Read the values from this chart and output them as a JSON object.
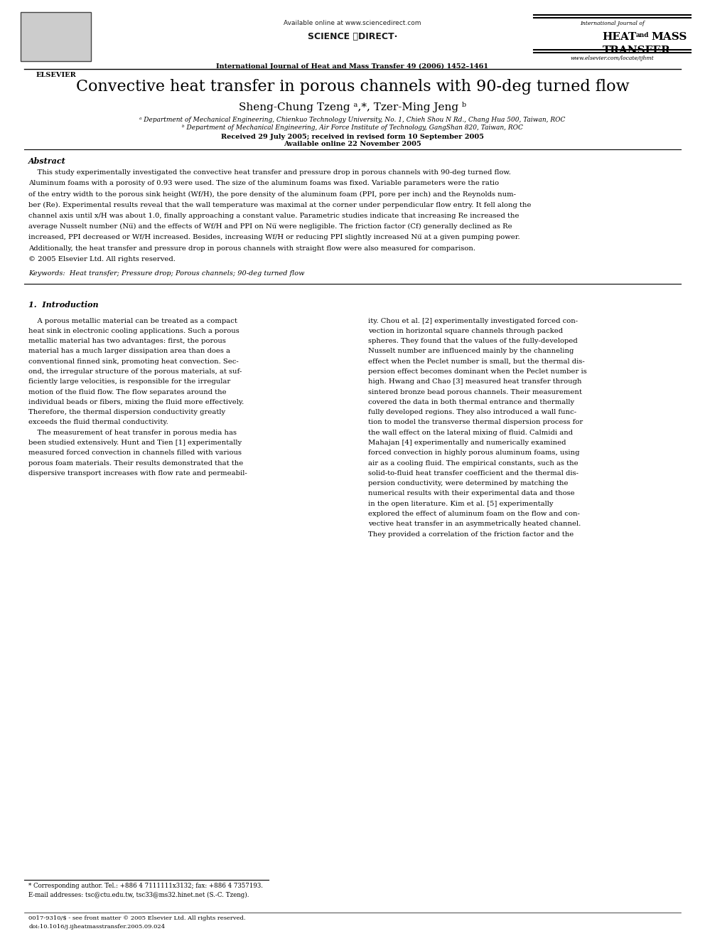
{
  "page_width": 9.92,
  "page_height": 13.23,
  "bg_color": "#ffffff",
  "header": {
    "available_online": "Available online at www.sciencedirect.com",
    "journal_full": "International Journal of Heat and Mass Transfer 49 (2006) 1452–1461",
    "website": "www.elsevier.com/locate/ijhmt"
  },
  "title": "Convective heat transfer in porous channels with 90-deg turned flow",
  "authors": "Sheng-Chung Tzeng ᵃ,*, Tzer-Ming Jeng ᵇ",
  "affiliation_a": "ᵃ Department of Mechanical Engineering, Chienkuo Technology University, No. 1, Chieh Shou N Rd., Chang Hua 500, Taiwan, ROC",
  "affiliation_b": "ᵇ Department of Mechanical Engineering, Air Force Institute of Technology, GangShan 820, Taiwan, ROC",
  "received": "Received 29 July 2005; received in revised form 10 September 2005",
  "available_online_date": "Available online 22 November 2005",
  "abstract_title": "Abstract",
  "keywords": "Keywords:  Heat transfer; Pressure drop; Porous channels; 90-deg turned flow",
  "section1_title": "1.  Introduction",
  "footnote_star": "* Corresponding author. Tel.: +886 4 7111111x3132; fax: +886 4 7357193.",
  "footnote_email": "E-mail addresses: tsc@ctu.edu.tw, tsc33@ms32.hinet.net (S.-C. Tzeng).",
  "footer_line1": "0017-9310/$ - see front matter © 2005 Elsevier Ltd. All rights reserved.",
  "footer_line2": "doi:10.1016/j.ijheatmasstransfer.2005.09.024",
  "abstract_lines": [
    "    This study experimentally investigated the convective heat transfer and pressure drop in porous channels with 90-deg turned flow.",
    "Aluminum foams with a porosity of 0.93 were used. The size of the aluminum foams was fixed. Variable parameters were the ratio",
    "of the entry width to the porous sink height (Wf/H), the pore density of the aluminum foam (PPI, pore per inch) and the Reynolds num-",
    "ber (Re). Experimental results reveal that the wall temperature was maximal at the corner under perpendicular flow entry. It fell along the",
    "channel axis until x/H was about 1.0, finally approaching a constant value. Parametric studies indicate that increasing Re increased the",
    "average Nusselt number (Nu̅) and the effects of Wf/H and PPI on Nu̅ were negligible. The friction factor (Cf) generally declined as Re",
    "increased, PPI decreased or Wf/H increased. Besides, increasing Wf/H or reducing PPI slightly increased Nu̅ at a given pumping power.",
    "Additionally, the heat transfer and pressure drop in porous channels with straight flow were also measured for comparison.",
    "© 2005 Elsevier Ltd. All rights reserved."
  ],
  "col1_lines": [
    "    A porous metallic material can be treated as a compact",
    "heat sink in electronic cooling applications. Such a porous",
    "metallic material has two advantages: first, the porous",
    "material has a much larger dissipation area than does a",
    "conventional finned sink, promoting heat convection. Sec-",
    "ond, the irregular structure of the porous materials, at suf-",
    "ficiently large velocities, is responsible for the irregular",
    "motion of the fluid flow. The flow separates around the",
    "individual beads or fibers, mixing the fluid more effectively.",
    "Therefore, the thermal dispersion conductivity greatly",
    "exceeds the fluid thermal conductivity.",
    "    The measurement of heat transfer in porous media has",
    "been studied extensively. Hunt and Tien [1] experimentally",
    "measured forced convection in channels filled with various",
    "porous foam materials. Their results demonstrated that the",
    "dispersive transport increases with flow rate and permeabil-"
  ],
  "col2_lines": [
    "ity. Chou et al. [2] experimentally investigated forced con-",
    "vection in horizontal square channels through packed",
    "spheres. They found that the values of the fully-developed",
    "Nusselt number are influenced mainly by the channeling",
    "effect when the Peclet number is small, but the thermal dis-",
    "persion effect becomes dominant when the Peclet number is",
    "high. Hwang and Chao [3] measured heat transfer through",
    "sintered bronze bead porous channels. Their measurement",
    "covered the data in both thermal entrance and thermally",
    "fully developed regions. They also introduced a wall func-",
    "tion to model the transverse thermal dispersion process for",
    "the wall effect on the lateral mixing of fluid. Calmidi and",
    "Mahajan [4] experimentally and numerically examined",
    "forced convection in highly porous aluminum foams, using",
    "air as a cooling fluid. The empirical constants, such as the",
    "solid-to-fluid heat transfer coefficient and the thermal dis-",
    "persion conductivity, were determined by matching the",
    "numerical results with their experimental data and those",
    "in the open literature. Kim et al. [5] experimentally",
    "explored the effect of aluminum foam on the flow and con-",
    "vective heat transfer in an asymmetrically heated channel.",
    "They provided a correlation of the friction factor and the"
  ]
}
